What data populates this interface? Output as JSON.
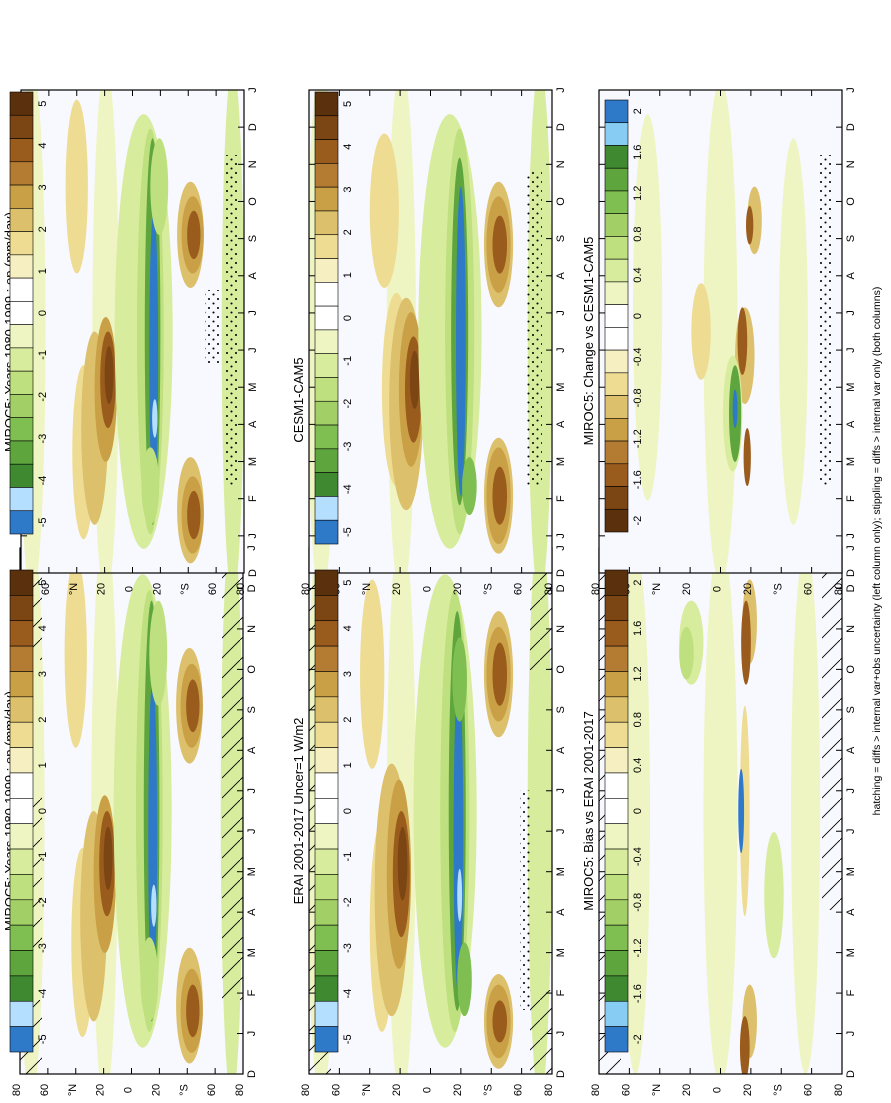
{
  "figure": {
    "footnote": "hatching = diffs > internal var+obs uncertainty (left column only); stippling = diffs > internal var only (both columns)"
  },
  "months": [
    "D",
    "J",
    "F",
    "M",
    "A",
    "M",
    "J",
    "J",
    "A",
    "S",
    "O",
    "N",
    "D",
    "J"
  ],
  "lat_ticks": [
    "80",
    "60",
    "°N",
    "20",
    "0",
    "20",
    "°S",
    "60",
    "80"
  ],
  "palettes": {
    "mean": [
      "#5b300d",
      "#7c4514",
      "#9a5c1c",
      "#b47b32",
      "#c9a046",
      "#dcc06b",
      "#eedc93",
      "#f6efc2",
      "#ffffff",
      "#ffffff",
      "#eef5c2",
      "#d8ec9e",
      "#bfe07e",
      "#a2cf66",
      "#7fbe50",
      "#5ea53e",
      "#3f8a31",
      "#b5dfff",
      "#2f79c9"
    ],
    "diff": [
      "#5b300d",
      "#7c4514",
      "#9a5c1c",
      "#b47b32",
      "#c9a046",
      "#dcc06b",
      "#eedc93",
      "#f6efc2",
      "#ffffff",
      "#ffffff",
      "#eef5c2",
      "#d8ec9e",
      "#bfe07e",
      "#a2cf66",
      "#7fbe50",
      "#5ea53e",
      "#3f8a31",
      "#87cdf3",
      "#2f79c9"
    ]
  },
  "colorbar_labels": {
    "mean": [
      "5",
      "4",
      "3",
      "2",
      "1",
      "0",
      "-1",
      "-2",
      "-3",
      "-4",
      "-5"
    ],
    "diff": [
      "2",
      "1.6",
      "1.2",
      "0.8",
      "0.4",
      "0",
      "-0.4",
      "-0.8",
      "-1.2",
      "-1.6",
      "-2"
    ],
    "diff_reversed": [
      "2",
      "1.6",
      "1.2",
      "0.8",
      "0.4",
      "0",
      "-0.4",
      "-0.8",
      "-1.2",
      "-1.6",
      "-2"
    ]
  },
  "chart_data": [
    {
      "type": "heatmap",
      "title": "MIROC5: Years 1980-1999 : ep (mm/day)",
      "x": "month (D-J)",
      "y": "latitude 90N-90S",
      "units": "mm/day",
      "range": [
        -5,
        5
      ],
      "hatching": true,
      "stippling": true
    },
    {
      "type": "heatmap",
      "title": "MIROC5: Years 1980-1999 : ep (mm/day)",
      "x": "month (D-J)",
      "y": "latitude 90N-90S",
      "units": "mm/day",
      "range": [
        -5,
        5
      ],
      "stippling": true
    },
    {
      "type": "heatmap",
      "title": "ERAI 2001-2017 Uncer=1 W/m2",
      "x": "month (D-J)",
      "y": "latitude 90N-90S",
      "units": "mm/day",
      "range": [
        -5,
        5
      ],
      "hatching": true,
      "stippling": true
    },
    {
      "type": "heatmap",
      "title": "CESM1-CAM5",
      "x": "month (D-J)",
      "y": "latitude 90N-90S",
      "units": "mm/day",
      "range": [
        -5,
        5
      ],
      "stippling": true
    },
    {
      "type": "heatmap",
      "title": "MIROC5: Bias vs ERAI 2001-2017",
      "x": "month (D-J)",
      "y": "latitude 90N-90S",
      "units": "mm/day",
      "range": [
        -2,
        2
      ],
      "hatching": true
    },
    {
      "type": "heatmap",
      "title": "MIROC5: Change vs CESM1-CAM5",
      "x": "month (D-J)",
      "y": "latitude 90N-90S",
      "units": "mm/day",
      "range": [
        -2,
        2
      ],
      "stippling": true
    }
  ]
}
